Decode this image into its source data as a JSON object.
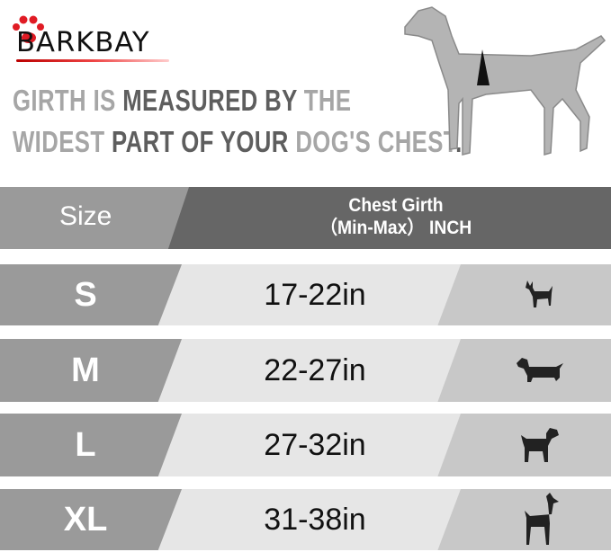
{
  "brand": {
    "logo_text": "BARKBAY",
    "colors": {
      "paw": "#e01b24",
      "line": "#c00000"
    }
  },
  "headline": {
    "line1": [
      {
        "text": "GIRTH IS ",
        "tone": "light"
      },
      {
        "text": "MEASURED BY ",
        "tone": "dark"
      },
      {
        "text": "THE",
        "tone": "light"
      }
    ],
    "line2": [
      {
        "text": "WIDEST ",
        "tone": "light"
      },
      {
        "text": "PART OF YOUR ",
        "tone": "dark"
      },
      {
        "text": "DOG'S CHEST",
        "tone": "light"
      },
      {
        "text": ".",
        "tone": "dark"
      }
    ]
  },
  "table": {
    "header": {
      "size": "Size",
      "girth_line1": "Chest Girth",
      "girth_line2": "（Min-Max） INCH"
    },
    "rows": [
      {
        "size": "S",
        "girth": "17-22in",
        "icon": "chihuahua-icon"
      },
      {
        "size": "M",
        "girth": "22-27in",
        "icon": "dachshund-icon"
      },
      {
        "size": "L",
        "girth": "27-32in",
        "icon": "labrador-icon"
      },
      {
        "size": "XL",
        "girth": "31-38in",
        "icon": "great-dane-icon"
      }
    ]
  }
}
